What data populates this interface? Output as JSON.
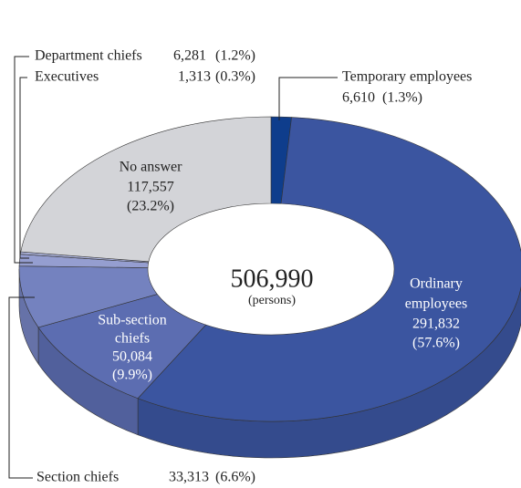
{
  "chart_data": {
    "type": "donut",
    "categories": [
      "Temporary employees",
      "Ordinary employees",
      "Sub-section chiefs",
      "Section chiefs",
      "Department chiefs",
      "Executives",
      "No answer"
    ],
    "values": [
      6610,
      291832,
      50084,
      33313,
      6281,
      1313,
      117557
    ],
    "value_labels": [
      "6,610",
      "291,832",
      "50,084",
      "33,313",
      "6,281",
      "1,313",
      "117,557"
    ],
    "percent_labels": [
      "(1.3%)",
      "(57.6%)",
      "(9.9%)",
      "(6.6%)",
      "(1.2%)",
      "(0.3%)",
      "(23.2%)"
    ],
    "colors": [
      "#0e3d8c",
      "#3b55a0",
      "#5c6db1",
      "#7482bf",
      "#959ed0",
      "#a9b0d8",
      "#d3d4d8"
    ],
    "total": "506,990",
    "total_unit": "(persons)"
  }
}
